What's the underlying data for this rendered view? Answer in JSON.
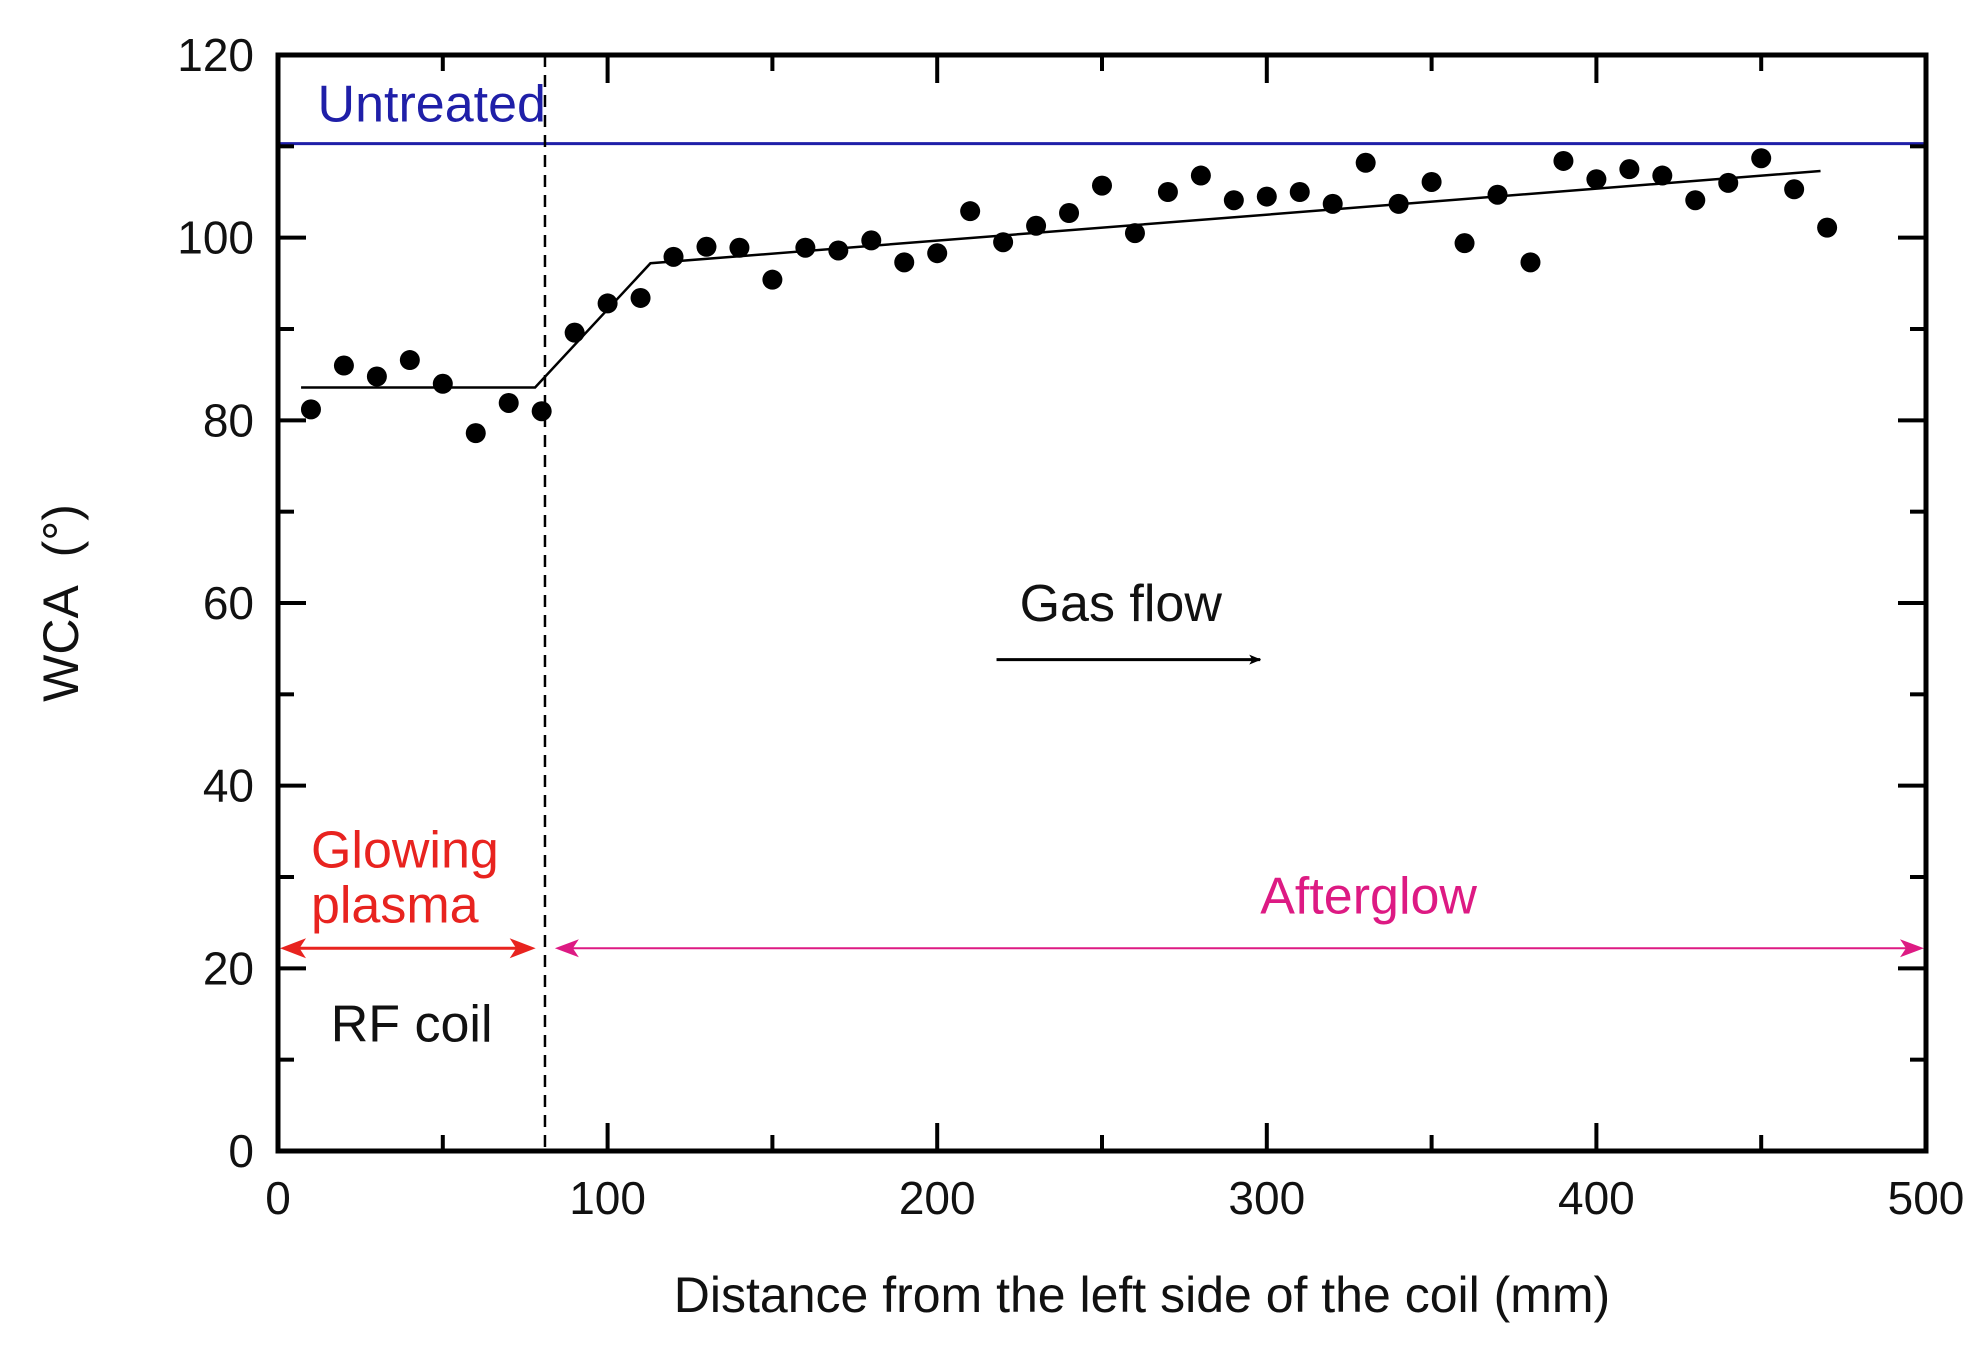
{
  "chart_data": {
    "type": "scatter",
    "title": "",
    "xlabel": "Distance from the left side of the coil (mm)",
    "ylabel": "WCA  (°)",
    "xlim": [
      0,
      500
    ],
    "ylim": [
      0,
      120
    ],
    "xticks": [
      0,
      100,
      200,
      300,
      400,
      500
    ],
    "yticks": [
      0,
      20,
      40,
      60,
      80,
      100,
      120
    ],
    "xtick_labels": [
      "0",
      "100",
      "200",
      "300",
      "400",
      "500"
    ],
    "ytick_labels": [
      "0",
      "20",
      "40",
      "60",
      "80",
      "100",
      "120"
    ],
    "grid": false,
    "series": [
      {
        "name": "WCA",
        "marker": "filled-circle",
        "color": "#000000",
        "points": [
          {
            "x": 10,
            "y": 81.2
          },
          {
            "x": 20,
            "y": 86.0
          },
          {
            "x": 30,
            "y": 84.8
          },
          {
            "x": 40,
            "y": 86.6
          },
          {
            "x": 50,
            "y": 84.0
          },
          {
            "x": 60,
            "y": 78.6
          },
          {
            "x": 70,
            "y": 81.9
          },
          {
            "x": 80,
            "y": 81.0
          },
          {
            "x": 90,
            "y": 89.6
          },
          {
            "x": 100,
            "y": 92.8
          },
          {
            "x": 110,
            "y": 93.4
          },
          {
            "x": 120,
            "y": 97.9
          },
          {
            "x": 130,
            "y": 99.0
          },
          {
            "x": 140,
            "y": 98.9
          },
          {
            "x": 150,
            "y": 95.4
          },
          {
            "x": 160,
            "y": 98.9
          },
          {
            "x": 170,
            "y": 98.6
          },
          {
            "x": 180,
            "y": 99.7
          },
          {
            "x": 190,
            "y": 97.3
          },
          {
            "x": 200,
            "y": 98.3
          },
          {
            "x": 210,
            "y": 102.9
          },
          {
            "x": 220,
            "y": 99.5
          },
          {
            "x": 230,
            "y": 101.3
          },
          {
            "x": 240,
            "y": 102.7
          },
          {
            "x": 250,
            "y": 105.7
          },
          {
            "x": 260,
            "y": 100.5
          },
          {
            "x": 270,
            "y": 105.0
          },
          {
            "x": 280,
            "y": 106.8
          },
          {
            "x": 290,
            "y": 104.1
          },
          {
            "x": 300,
            "y": 104.5
          },
          {
            "x": 310,
            "y": 105.0
          },
          {
            "x": 320,
            "y": 103.7
          },
          {
            "x": 330,
            "y": 108.2
          },
          {
            "x": 340,
            "y": 103.7
          },
          {
            "x": 350,
            "y": 106.1
          },
          {
            "x": 360,
            "y": 99.4
          },
          {
            "x": 370,
            "y": 104.7
          },
          {
            "x": 380,
            "y": 97.3
          },
          {
            "x": 390,
            "y": 108.4
          },
          {
            "x": 400,
            "y": 106.4
          },
          {
            "x": 410,
            "y": 107.5
          },
          {
            "x": 420,
            "y": 106.8
          },
          {
            "x": 430,
            "y": 104.1
          },
          {
            "x": 440,
            "y": 106.0
          },
          {
            "x": 450,
            "y": 108.7
          },
          {
            "x": 460,
            "y": 105.3
          },
          {
            "x": 470,
            "y": 101.1
          }
        ]
      }
    ],
    "fit_line": {
      "name": "trend",
      "color": "#000000",
      "points": [
        {
          "x": 7,
          "y": 83.6
        },
        {
          "x": 78,
          "y": 83.6
        },
        {
          "x": 113,
          "y": 97.2
        },
        {
          "x": 468,
          "y": 107.3
        }
      ]
    },
    "reference_line": {
      "label": "Untreated",
      "y": 110.3,
      "color": "#1f1fa8"
    },
    "marker_line": {
      "label": "RF coil",
      "x": 81,
      "color": "#000000"
    },
    "regions": [
      {
        "label_lines": [
          "Glowing",
          "plasma"
        ],
        "x_start": 0,
        "x_end": 80,
        "y": 22.2,
        "color": "#e8231f"
      },
      {
        "label_lines": [
          "Afterglow"
        ],
        "x_start": 84,
        "x_end": 500,
        "y": 22.2,
        "color": "#dd1a83"
      }
    ],
    "annotations": [
      {
        "text": "Gas flow",
        "arrow_x": [
          218,
          298
        ],
        "y": 53.8,
        "color": "#000000"
      }
    ]
  }
}
